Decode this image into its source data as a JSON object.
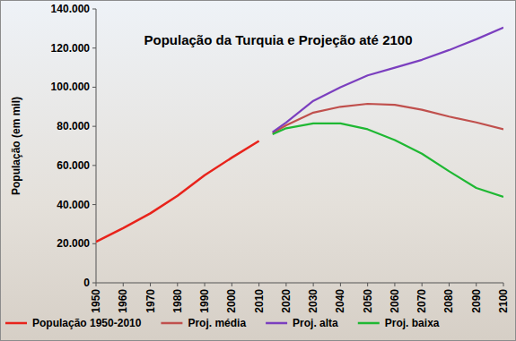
{
  "chart_data": {
    "type": "line",
    "title": "População da Turquia e Projeção até 2100",
    "y_label": "População (em mil)",
    "x": [
      1950,
      1960,
      1970,
      1980,
      1990,
      2000,
      2010,
      2015,
      2020,
      2030,
      2040,
      2050,
      2060,
      2070,
      2080,
      2090,
      2100
    ],
    "series": [
      {
        "name": "População 1950-2010",
        "color": "#e8231b",
        "values": [
          21000,
          28000,
          35500,
          44500,
          55000,
          64000,
          72500,
          null,
          null,
          null,
          null,
          null,
          null,
          null,
          null,
          null,
          null
        ]
      },
      {
        "name": "Proj. média",
        "color": "#c0504d",
        "values": [
          null,
          null,
          null,
          null,
          null,
          null,
          null,
          76500,
          80500,
          87000,
          90000,
          91500,
          91000,
          88500,
          85000,
          82000,
          78500
        ]
      },
      {
        "name": "Proj. alta",
        "color": "#7b3fbf",
        "values": [
          null,
          null,
          null,
          null,
          null,
          null,
          null,
          77000,
          82000,
          93000,
          100000,
          106000,
          110000,
          114000,
          119000,
          124500,
          130500
        ]
      },
      {
        "name": "Proj. baixa",
        "color": "#1fb833",
        "values": [
          null,
          null,
          null,
          null,
          null,
          null,
          null,
          76000,
          79000,
          81500,
          81500,
          78500,
          73000,
          66000,
          57000,
          48500,
          44000
        ]
      }
    ],
    "xlim": [
      1950,
      2100
    ],
    "xticks": [
      1950,
      1960,
      1970,
      1980,
      1990,
      2000,
      2010,
      2020,
      2030,
      2040,
      2050,
      2060,
      2070,
      2080,
      2090,
      2100
    ],
    "ylim": [
      0,
      140000
    ],
    "yticks": [
      {
        "value": 0,
        "label": "0"
      },
      {
        "value": 20000,
        "label": "20.000"
      },
      {
        "value": 40000,
        "label": "40.000"
      },
      {
        "value": 60000,
        "label": "60.000"
      },
      {
        "value": 80000,
        "label": "80.000"
      },
      {
        "value": 100000,
        "label": "100.000"
      },
      {
        "value": 120000,
        "label": "120.000"
      },
      {
        "value": 140000,
        "label": "140.000"
      }
    ],
    "grid": false,
    "legend": "bottom"
  }
}
